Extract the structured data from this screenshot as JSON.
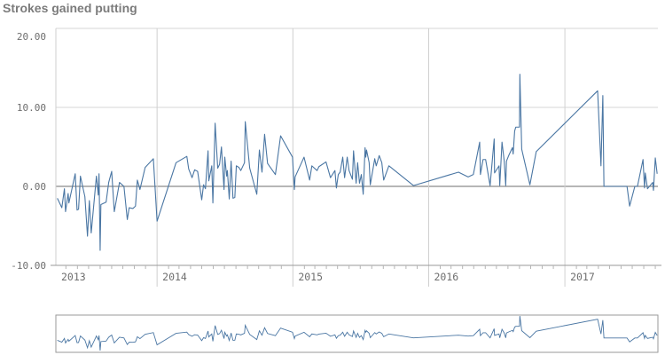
{
  "chart_data": {
    "type": "line",
    "title": "Strokes gained putting",
    "xlabel": "",
    "ylabel": "",
    "ylim": [
      -10,
      20
    ],
    "xlim": [
      "2013-04-04",
      "2017-09-08"
    ],
    "y_ticks": [
      "20.00",
      "10.00",
      "0.00",
      "-10.00"
    ],
    "y_tick_values": [
      20,
      10,
      0,
      -10
    ],
    "x_ticks": [
      "2013",
      "2014",
      "2015",
      "2016",
      "2017"
    ],
    "grid": true,
    "line_color": "#4a76a3",
    "minimap": true,
    "points": [
      [
        "2013-04-08",
        -1.5
      ],
      [
        "2013-04-20",
        -2.7
      ],
      [
        "2013-04-27",
        -0.3
      ],
      [
        "2013-04-30",
        -3.2
      ],
      [
        "2013-05-07",
        -0.9
      ],
      [
        "2013-05-09",
        -2.1
      ],
      [
        "2013-05-26",
        1.6
      ],
      [
        "2013-05-31",
        -3.0
      ],
      [
        "2013-06-04",
        -2.9
      ],
      [
        "2013-06-09",
        1.3
      ],
      [
        "2013-06-21",
        -1.3
      ],
      [
        "2013-06-28",
        -6.3
      ],
      [
        "2013-07-03",
        -1.8
      ],
      [
        "2013-07-08",
        -5.9
      ],
      [
        "2013-07-22",
        1.3
      ],
      [
        "2013-07-27",
        -1.1
      ],
      [
        "2013-07-29",
        1.6
      ],
      [
        "2013-08-01",
        -8.1
      ],
      [
        "2013-08-03",
        -2.3
      ],
      [
        "2013-08-17",
        -2.0
      ],
      [
        "2013-08-24",
        0.5
      ],
      [
        "2013-09-01",
        1.9
      ],
      [
        "2013-09-08",
        -3.2
      ],
      [
        "2013-09-22",
        0.5
      ],
      [
        "2013-10-04",
        0.0
      ],
      [
        "2013-10-13",
        -4.2
      ],
      [
        "2013-10-18",
        -2.7
      ],
      [
        "2013-10-28",
        -2.8
      ],
      [
        "2013-11-04",
        -2.5
      ],
      [
        "2013-11-09",
        0.8
      ],
      [
        "2013-11-16",
        -0.4
      ],
      [
        "2013-11-30",
        2.4
      ],
      [
        "2013-12-22",
        3.5
      ],
      [
        "2014-01-01",
        -4.4
      ],
      [
        "2014-02-21",
        3.0
      ],
      [
        "2014-03-22",
        3.8
      ],
      [
        "2014-03-27",
        2.2
      ],
      [
        "2014-04-05",
        1.1
      ],
      [
        "2014-04-12",
        2.1
      ],
      [
        "2014-04-20",
        1.9
      ],
      [
        "2014-05-01",
        -1.7
      ],
      [
        "2014-05-06",
        0.2
      ],
      [
        "2014-05-11",
        -0.3
      ],
      [
        "2014-05-18",
        4.5
      ],
      [
        "2014-05-20",
        0.7
      ],
      [
        "2014-05-28",
        2.6
      ],
      [
        "2014-05-31",
        -2.1
      ],
      [
        "2014-06-06",
        8.0
      ],
      [
        "2014-06-13",
        2.3
      ],
      [
        "2014-06-18",
        2.8
      ],
      [
        "2014-06-23",
        5.0
      ],
      [
        "2014-06-30",
        -0.4
      ],
      [
        "2014-07-02",
        3.7
      ],
      [
        "2014-07-07",
        1.3
      ],
      [
        "2014-07-09",
        2.0
      ],
      [
        "2014-07-14",
        -1.6
      ],
      [
        "2014-07-19",
        3.2
      ],
      [
        "2014-07-24",
        -1.5
      ],
      [
        "2014-07-29",
        -1.4
      ],
      [
        "2014-08-02",
        2.6
      ],
      [
        "2014-08-09",
        2.4
      ],
      [
        "2014-08-14",
        2.0
      ],
      [
        "2014-08-24",
        3.0
      ],
      [
        "2014-08-26",
        8.2
      ],
      [
        "2014-09-07",
        2.3
      ],
      [
        "2014-09-26",
        -1.0
      ],
      [
        "2014-10-03",
        4.6
      ],
      [
        "2014-10-10",
        1.8
      ],
      [
        "2014-10-17",
        6.6
      ],
      [
        "2014-10-25",
        2.9
      ],
      [
        "2014-11-15",
        1.5
      ],
      [
        "2014-11-29",
        6.4
      ],
      [
        "2014-12-31",
        3.7
      ],
      [
        "2015-01-05",
        -0.4
      ],
      [
        "2015-01-07",
        1.2
      ],
      [
        "2015-01-31",
        3.7
      ],
      [
        "2015-02-15",
        0.8
      ],
      [
        "2015-02-21",
        2.6
      ],
      [
        "2015-03-07",
        2.0
      ],
      [
        "2015-03-12",
        2.5
      ],
      [
        "2015-03-31",
        3.1
      ],
      [
        "2015-04-12",
        1.1
      ],
      [
        "2015-04-24",
        2.0
      ],
      [
        "2015-04-28",
        -0.2
      ],
      [
        "2015-05-03",
        1.5
      ],
      [
        "2015-05-08",
        1.8
      ],
      [
        "2015-05-15",
        3.7
      ],
      [
        "2015-05-20",
        1.1
      ],
      [
        "2015-05-27",
        3.7
      ],
      [
        "2015-06-01",
        2.0
      ],
      [
        "2015-06-10",
        0.9
      ],
      [
        "2015-06-13",
        4.5
      ],
      [
        "2015-06-20",
        0.4
      ],
      [
        "2015-06-24",
        3.0
      ],
      [
        "2015-06-29",
        0.4
      ],
      [
        "2015-07-04",
        1.5
      ],
      [
        "2015-07-09",
        -1.0
      ],
      [
        "2015-07-14",
        4.9
      ],
      [
        "2015-07-16",
        3.7
      ],
      [
        "2015-07-18",
        4.6
      ],
      [
        "2015-07-25",
        3.0
      ],
      [
        "2015-07-28",
        0.2
      ],
      [
        "2015-08-09",
        3.5
      ],
      [
        "2015-08-13",
        2.6
      ],
      [
        "2015-08-21",
        3.9
      ],
      [
        "2015-08-28",
        3.0
      ],
      [
        "2015-09-02",
        0.8
      ],
      [
        "2015-09-16",
        2.6
      ],
      [
        "2015-11-21",
        0.1
      ],
      [
        "2016-03-21",
        1.8
      ],
      [
        "2016-04-16",
        1.2
      ],
      [
        "2016-04-30",
        1.5
      ],
      [
        "2016-05-17",
        5.6
      ],
      [
        "2016-05-19",
        1.5
      ],
      [
        "2016-05-26",
        3.4
      ],
      [
        "2016-06-02",
        3.4
      ],
      [
        "2016-06-14",
        0.1
      ],
      [
        "2016-06-25",
        6.0
      ],
      [
        "2016-06-26",
        1.7
      ],
      [
        "2016-07-08",
        2.6
      ],
      [
        "2016-07-10",
        0.1
      ],
      [
        "2016-07-16",
        5.6
      ],
      [
        "2016-07-22",
        3.2
      ],
      [
        "2016-07-26",
        0.1
      ],
      [
        "2016-07-28",
        3.2
      ],
      [
        "2016-08-03",
        3.9
      ],
      [
        "2016-08-13",
        4.9
      ],
      [
        "2016-08-15",
        4.1
      ],
      [
        "2016-08-19",
        7.0
      ],
      [
        "2016-08-22",
        7.5
      ],
      [
        "2016-09-01",
        7.5
      ],
      [
        "2016-09-02",
        14.2
      ],
      [
        "2016-09-07",
        4.7
      ],
      [
        "2016-09-29",
        0.2
      ],
      [
        "2016-10-16",
        4.4
      ],
      [
        "2017-03-30",
        12.1
      ],
      [
        "2017-04-08",
        2.6
      ],
      [
        "2017-04-13",
        11.5
      ],
      [
        "2017-04-16",
        0.0
      ],
      [
        "2017-06-17",
        0.0
      ],
      [
        "2017-06-24",
        -2.5
      ],
      [
        "2017-07-08",
        0.0
      ],
      [
        "2017-07-15",
        0.0
      ],
      [
        "2017-07-30",
        3.4
      ],
      [
        "2017-08-03",
        -0.2
      ],
      [
        "2017-08-05",
        1.7
      ],
      [
        "2017-08-11",
        -0.3
      ],
      [
        "2017-08-25",
        0.5
      ],
      [
        "2017-08-27",
        -0.5
      ],
      [
        "2017-09-01",
        3.6
      ],
      [
        "2017-09-06",
        1.6
      ]
    ]
  }
}
